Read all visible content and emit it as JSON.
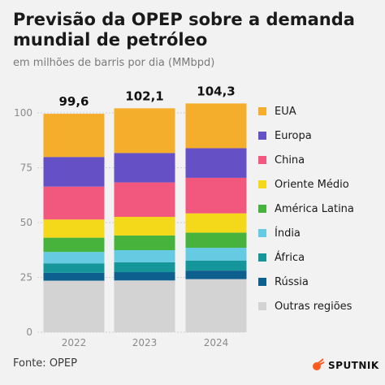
{
  "header": {
    "title_line1": "Previsão da OPEP sobre a demanda",
    "title_line2": "mundial de petróleo",
    "subtitle": "em milhões de barris por dia (MMbpd)"
  },
  "footer": {
    "source": "Fonte: OPEP",
    "brand": "SPUTNIK"
  },
  "colors": {
    "EUA": "#f5ae2c",
    "Europa": "#6650c6",
    "China": "#f2587d",
    "Oriente Médio": "#f4d81a",
    "América Latina": "#47b33d",
    "Índia": "#67cae3",
    "África": "#14969a",
    "Rússia": "#0d5f8e",
    "Outras regiões": "#d3d3d3"
  },
  "chart_data": {
    "type": "bar",
    "stacked": true,
    "title": "Previsão da OPEP sobre a demanda mundial de petróleo",
    "subtitle": "em milhões de barris por dia (MMbpd)",
    "categories": [
      "2022",
      "2023",
      "2024"
    ],
    "totals": [
      99.6,
      102.1,
      104.3
    ],
    "total_labels": [
      "99,6",
      "102,1",
      "104,3"
    ],
    "ylim": [
      0,
      100
    ],
    "yticks": [
      0,
      25,
      50,
      75,
      100
    ],
    "grid": true,
    "legend_position": "right",
    "series": [
      {
        "name": "Outras regiões",
        "values": [
          23.5,
          23.6,
          24.2
        ]
      },
      {
        "name": "Rússia",
        "values": [
          3.6,
          3.8,
          3.9
        ]
      },
      {
        "name": "África",
        "values": [
          4.3,
          4.5,
          4.6
        ]
      },
      {
        "name": "Índia",
        "values": [
          5.2,
          5.5,
          5.8
        ]
      },
      {
        "name": "América Latina",
        "values": [
          6.5,
          6.7,
          6.9
        ]
      },
      {
        "name": "Oriente Médio",
        "values": [
          8.3,
          8.5,
          8.8
        ]
      },
      {
        "name": "China",
        "values": [
          15.0,
          15.7,
          16.2
        ]
      },
      {
        "name": "Europa",
        "values": [
          13.5,
          13.4,
          13.5
        ]
      },
      {
        "name": "EUA",
        "values": [
          19.7,
          20.4,
          20.4
        ]
      }
    ],
    "legend": [
      "EUA",
      "Europa",
      "China",
      "Oriente Médio",
      "América Latina",
      "Índia",
      "África",
      "Rússia",
      "Outras regiões"
    ]
  }
}
